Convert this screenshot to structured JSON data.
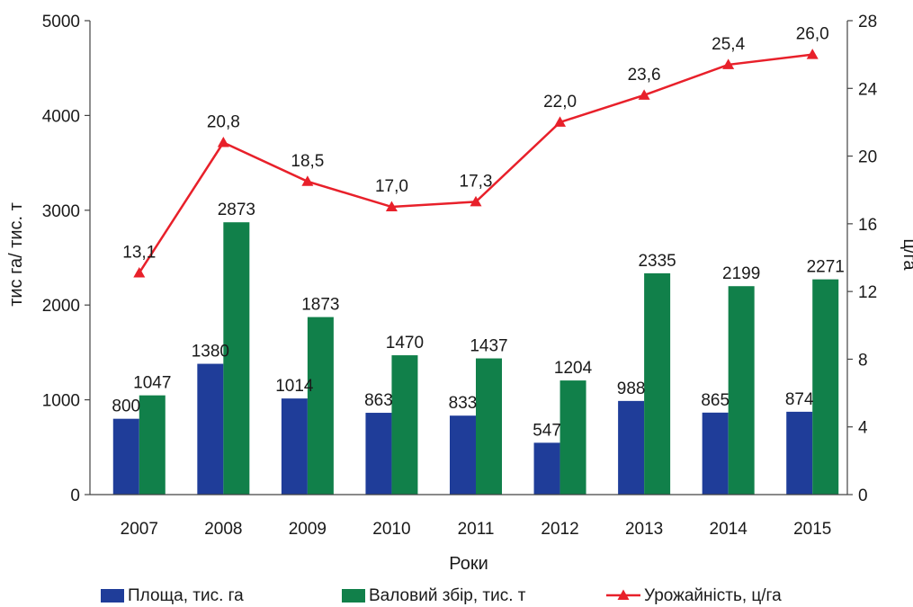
{
  "chart_data": {
    "type": "bar",
    "categories": [
      "2007",
      "2008",
      "2009",
      "2010",
      "2011",
      "2012",
      "2013",
      "2014",
      "2015"
    ],
    "series": [
      {
        "name": "Площа, тис. га",
        "type": "bar",
        "axis": "left",
        "color": "#1f3d99",
        "values": [
          800,
          1380,
          1014,
          863,
          833,
          547,
          988,
          865,
          874
        ],
        "labels": [
          "800",
          "1380",
          "1014",
          "863",
          "833",
          "547",
          "988",
          "865",
          "874"
        ]
      },
      {
        "name": "Валовий збір, тис. т",
        "type": "bar",
        "axis": "left",
        "color": "#11804a",
        "values": [
          1047,
          2873,
          1873,
          1470,
          1437,
          1204,
          2335,
          2199,
          2271
        ],
        "labels": [
          "1047",
          "2873",
          "1873",
          "1470",
          "1437",
          "1204",
          "2335",
          "2199",
          "2271"
        ]
      },
      {
        "name": "Урожайність, ц/га",
        "type": "line",
        "axis": "right",
        "color": "#e8202a",
        "values": [
          13.1,
          20.8,
          18.5,
          17.0,
          17.3,
          22.0,
          23.6,
          25.4,
          26.0
        ],
        "labels": [
          "13,1",
          "20,8",
          "18,5",
          "17,0",
          "17,3",
          "22,0",
          "23,6",
          "25,4",
          "26,0"
        ]
      }
    ],
    "xlabel": "Роки",
    "ylabel": "тис га/ тис. т",
    "ylabel_right": "ц/га",
    "ylim": [
      0,
      5000
    ],
    "ylim_right": [
      0,
      28
    ],
    "yticks": [
      "0",
      "1000",
      "2000",
      "3000",
      "4000",
      "5000"
    ],
    "yticks_right": [
      "0",
      "4",
      "8",
      "12",
      "16",
      "20",
      "24",
      "28"
    ],
    "grid": false,
    "legend_position": "bottom"
  }
}
